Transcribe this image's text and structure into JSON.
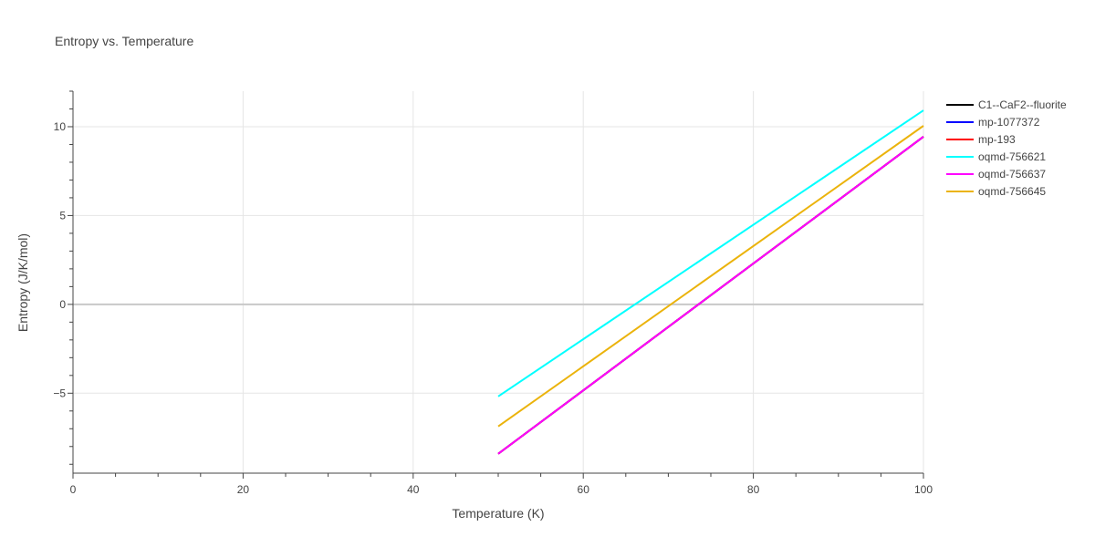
{
  "chart_data": {
    "type": "line",
    "title": "Entropy vs. Temperature",
    "xlabel": "Temperature (K)",
    "ylabel": "Entropy (J/K/mol)",
    "xlim": [
      0,
      100
    ],
    "ylim": [
      -9.5,
      12
    ],
    "xticks": [
      0,
      20,
      40,
      60,
      80,
      100
    ],
    "xtick_labels": [
      "0",
      "20",
      "40",
      "60",
      "80",
      "100"
    ],
    "yticks": [
      -5,
      0,
      5,
      10
    ],
    "ytick_labels": [
      "−5",
      "0",
      "5",
      "10"
    ],
    "grid": true,
    "legend_position": "top-right",
    "series": [
      {
        "name": "C1--CaF2--fluorite",
        "color": "#000000",
        "x": [
          50,
          100
        ],
        "y": [
          -8.41,
          9.44
        ]
      },
      {
        "name": "mp-1077372",
        "color": "#0000ff",
        "x": [
          50,
          100
        ],
        "y": [
          -8.41,
          9.44
        ]
      },
      {
        "name": "mp-193",
        "color": "#ff0000",
        "x": [
          50,
          100
        ],
        "y": [
          -8.41,
          9.44
        ]
      },
      {
        "name": "oqmd-756621",
        "color": "#00ffff",
        "x": [
          50,
          100
        ],
        "y": [
          -5.18,
          10.92
        ]
      },
      {
        "name": "oqmd-756637",
        "color": "#ff00ff",
        "x": [
          50,
          100
        ],
        "y": [
          -8.41,
          9.44
        ]
      },
      {
        "name": "oqmd-756645",
        "color": "#ebb30b",
        "x": [
          50,
          100
        ],
        "y": [
          -6.87,
          10.05
        ]
      }
    ]
  }
}
